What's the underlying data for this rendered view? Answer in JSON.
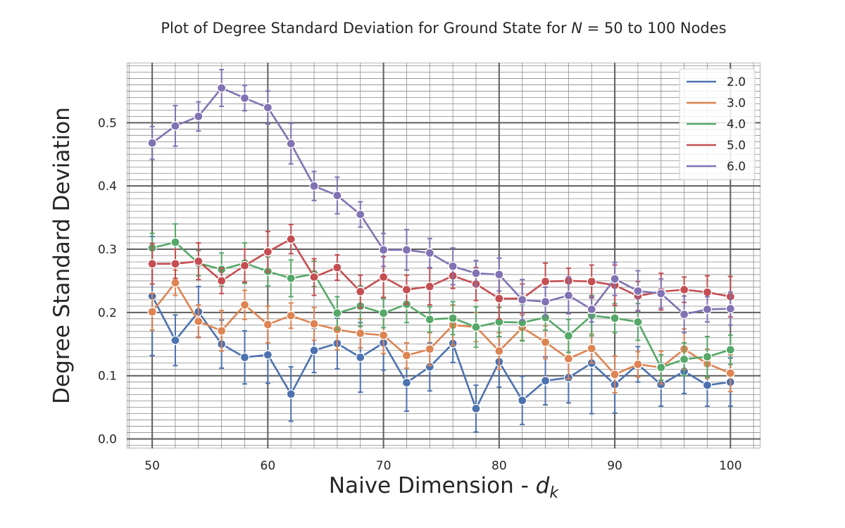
{
  "chart_data": {
    "type": "line",
    "title_prefix": "Plot of Degree Standard Deviation for Ground State for ",
    "title_math": "N",
    "title_suffix": " = 50 to 100 Nodes",
    "xlabel_prefix": "Naive Dimension - ",
    "xlabel_math": "d",
    "xlabel_sub": "k",
    "ylabel": "Degree Standard Deviation",
    "xlim": [
      47.8,
      102.6
    ],
    "ylim": [
      -0.015,
      0.595
    ],
    "x_ticks": [
      50,
      60,
      70,
      80,
      90,
      100
    ],
    "x_tick_labels": [
      "50",
      "60",
      "70",
      "80",
      "90",
      "100"
    ],
    "y_ticks": [
      0.0,
      0.1,
      0.2,
      0.3,
      0.4,
      0.5
    ],
    "y_tick_labels": [
      "0.0",
      "0.1",
      "0.2",
      "0.3",
      "0.4",
      "0.5"
    ],
    "grid": true,
    "legend_position": "top-right",
    "x": [
      50,
      52,
      54,
      56,
      58,
      60,
      62,
      64,
      66,
      68,
      70,
      72,
      74,
      76,
      78,
      80,
      82,
      84,
      86,
      88,
      90,
      92,
      94,
      96,
      98,
      100
    ],
    "series": [
      {
        "name": "2.0",
        "color": "#4c72b0",
        "values": [
          0.226,
          0.156,
          0.201,
          0.15,
          0.129,
          0.133,
          0.071,
          0.14,
          0.151,
          0.129,
          0.152,
          0.089,
          0.114,
          0.151,
          0.048,
          0.122,
          0.061,
          0.092,
          0.097,
          0.12,
          0.086,
          0.118,
          0.086,
          0.107,
          0.085,
          0.09
        ],
        "errors": [
          0.094,
          0.04,
          0.04,
          0.038,
          0.042,
          0.045,
          0.043,
          0.035,
          0.04,
          0.055,
          0.043,
          0.045,
          0.038,
          0.03,
          0.037,
          0.04,
          0.038,
          0.038,
          0.04,
          0.08,
          0.045,
          0.028,
          0.034,
          0.035,
          0.033,
          0.038
        ]
      },
      {
        "name": "3.0",
        "color": "#dd8452",
        "values": [
          0.201,
          0.247,
          0.186,
          0.171,
          0.212,
          0.181,
          0.195,
          0.182,
          0.173,
          0.167,
          0.164,
          0.132,
          0.142,
          0.18,
          0.177,
          0.139,
          0.176,
          0.153,
          0.127,
          0.143,
          0.102,
          0.118,
          0.113,
          0.142,
          0.119,
          0.104
        ]
      },
      {
        "name": "4.0",
        "color": "#55a868",
        "values": [
          0.302,
          0.311,
          0.278,
          0.268,
          0.278,
          0.265,
          0.254,
          0.261,
          0.199,
          0.21,
          0.199,
          0.213,
          0.189,
          0.191,
          0.177,
          0.185,
          0.184,
          0.192,
          0.163,
          0.195,
          0.191,
          0.185,
          0.113,
          0.126,
          0.13,
          0.141
        ]
      },
      {
        "name": "5.0",
        "color": "#c44e52",
        "values": [
          0.277,
          0.277,
          0.281,
          0.25,
          0.274,
          0.296,
          0.316,
          0.256,
          0.271,
          0.233,
          0.256,
          0.236,
          0.241,
          0.258,
          0.245,
          0.222,
          0.222,
          0.249,
          0.25,
          0.249,
          0.243,
          0.226,
          0.233,
          0.236,
          0.232,
          0.225
        ]
      },
      {
        "name": "6.0",
        "color": "#8172b3",
        "values": [
          0.468,
          0.495,
          0.51,
          0.555,
          0.539,
          0.524,
          0.467,
          0.4,
          0.385,
          0.355,
          0.299,
          0.299,
          0.294,
          0.273,
          0.262,
          0.26,
          0.22,
          0.217,
          0.227,
          0.205,
          0.253,
          0.234,
          0.23,
          0.197,
          0.205,
          0.206
        ]
      }
    ]
  }
}
